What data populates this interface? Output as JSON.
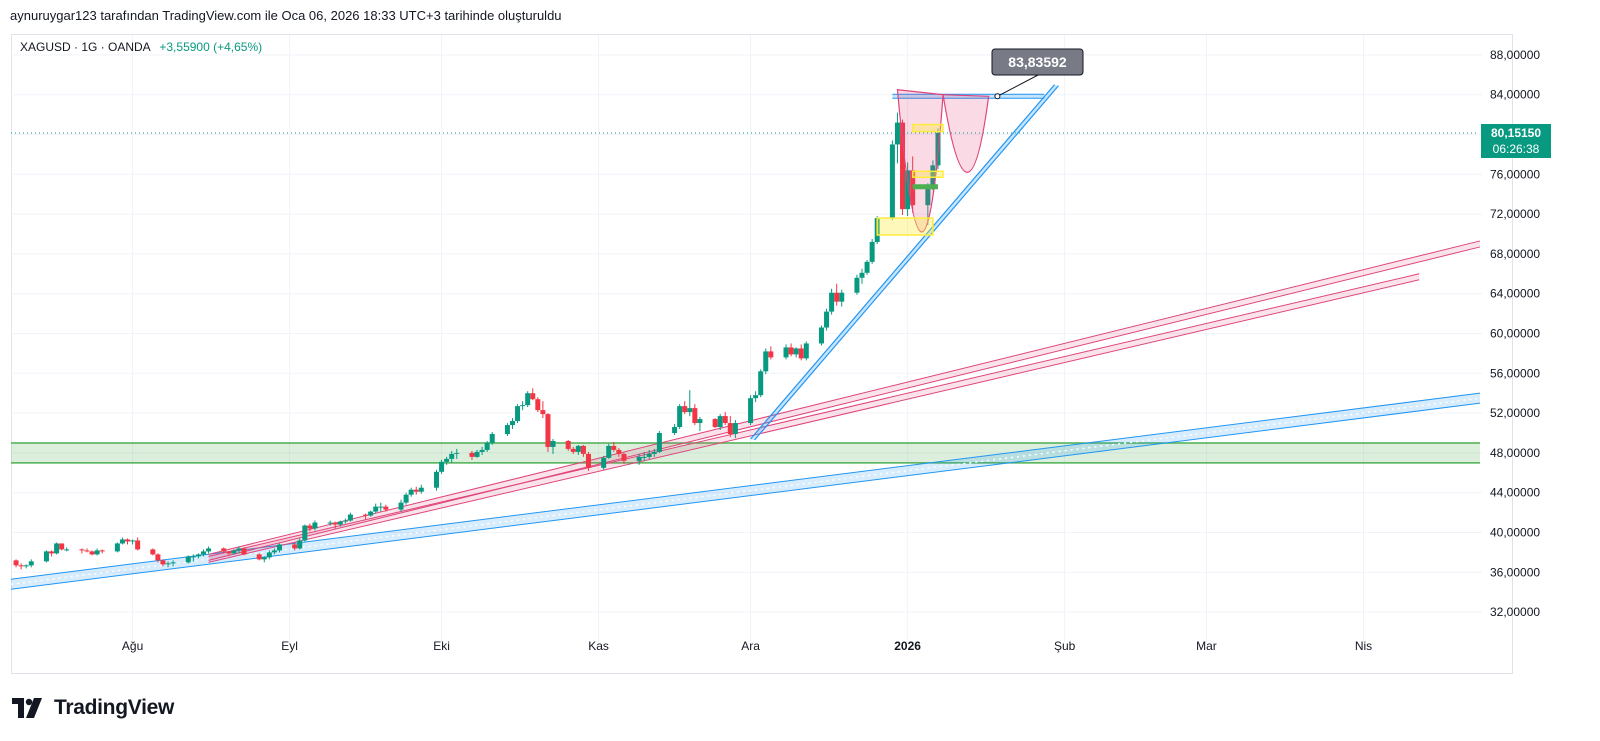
{
  "caption": "aynuruygar123 tarafından TradingView.com ile Oca 06, 2026 18:33 UTC+3 tarihinde oluşturuldu",
  "symbol": {
    "name": "XAGUSD · 1G · OANDA",
    "change": "+3,55900 (+4,65%)"
  },
  "brand": {
    "name": "TradingView"
  },
  "colors": {
    "up": "#089981",
    "down": "#f23645",
    "pink": "#e0457b",
    "blue": "#2196f3",
    "green": "#4caf50",
    "yellow": "#ffeb3b"
  },
  "price_label": {
    "value": "80,15150",
    "countdown": "06:26:38"
  },
  "target_label": "83,83592",
  "chart_data": {
    "type": "candlestick",
    "title": "XAGUSD · 1G · OANDA",
    "ylim": [
      30,
      90
    ],
    "y_ticks": [
      {
        "v": 32,
        "label": "32,00000"
      },
      {
        "v": 36,
        "label": "36,00000"
      },
      {
        "v": 40,
        "label": "40,00000"
      },
      {
        "v": 44,
        "label": "44,00000"
      },
      {
        "v": 48,
        "label": "48,00000"
      },
      {
        "v": 52,
        "label": "52,00000"
      },
      {
        "v": 56,
        "label": "56,00000"
      },
      {
        "v": 60,
        "label": "60,00000"
      },
      {
        "v": 64,
        "label": "64,00000"
      },
      {
        "v": 68,
        "label": "68,00000"
      },
      {
        "v": 72,
        "label": "72,00000"
      },
      {
        "v": 76,
        "label": "76,00000"
      },
      {
        "v": 80,
        "label": "80,00000"
      },
      {
        "v": 84,
        "label": "84,00000"
      },
      {
        "v": 88,
        "label": "88,00000"
      }
    ],
    "x_ticks": [
      {
        "day": 24,
        "label": "Ağu",
        "bold": false
      },
      {
        "day": 55,
        "label": "Eyl",
        "bold": false
      },
      {
        "day": 85,
        "label": "Eki",
        "bold": false
      },
      {
        "day": 116,
        "label": "Kas",
        "bold": false
      },
      {
        "day": 146,
        "label": "Ara",
        "bold": false
      },
      {
        "day": 177,
        "label": "2026",
        "bold": true
      },
      {
        "day": 208,
        "label": "Şub",
        "bold": false
      },
      {
        "day": 236,
        "label": "Mar",
        "bold": false
      },
      {
        "day": 267,
        "label": "Nis",
        "bold": false
      }
    ],
    "x_range_days": [
      0,
      290
    ],
    "start_date": "2025-07-01",
    "last_price": 80.1515,
    "candles": [
      [
        1,
        37.2,
        37.3,
        36.5,
        36.7
      ],
      [
        2,
        36.7,
        36.9,
        36.3,
        36.6
      ],
      [
        3,
        36.6,
        36.8,
        36.4,
        36.7
      ],
      [
        4,
        36.7,
        37.3,
        36.5,
        37.1
      ],
      [
        7,
        37.1,
        38.2,
        37,
        38.1
      ],
      [
        8,
        38.1,
        38.2,
        37.6,
        37.9
      ],
      [
        9,
        37.9,
        39,
        37.8,
        38.9
      ],
      [
        10,
        38.9,
        38.9,
        38.2,
        38.3
      ],
      [
        11,
        38.3,
        38.5,
        38.1,
        38.3
      ],
      [
        14,
        38.3,
        38.4,
        37.9,
        38.2
      ],
      [
        15,
        38.2,
        38.4,
        38,
        38.1
      ],
      [
        16,
        38.1,
        38.2,
        37.7,
        37.8
      ],
      [
        17,
        37.8,
        38.4,
        37.7,
        38.2
      ],
      [
        18,
        38.2,
        38.3,
        37.9,
        38.1
      ],
      [
        21,
        38.1,
        39,
        38,
        38.9
      ],
      [
        22,
        38.9,
        39.5,
        38.8,
        39.3
      ],
      [
        23,
        39.3,
        39.4,
        38.8,
        39.1
      ],
      [
        24,
        39.1,
        39.3,
        38.8,
        39.2
      ],
      [
        25,
        39.2,
        39.5,
        38.2,
        38.3
      ],
      [
        28,
        38.3,
        38.4,
        37.7,
        37.8
      ],
      [
        29,
        37.8,
        37.9,
        37,
        37.2
      ],
      [
        30,
        37.2,
        37.3,
        36.6,
        36.8
      ],
      [
        31,
        36.8,
        37.1,
        36.5,
        36.9
      ],
      [
        32,
        36.9,
        37.2,
        36.6,
        37
      ],
      [
        35,
        37,
        37.7,
        36.9,
        37.6
      ],
      [
        36,
        37.6,
        37.8,
        37.1,
        37.6
      ],
      [
        37,
        37.6,
        37.9,
        37.4,
        37.8
      ],
      [
        38,
        37.8,
        38.3,
        37.6,
        38.1
      ],
      [
        39,
        38.1,
        38.6,
        37.9,
        38.4
      ],
      [
        42,
        38.4,
        38.5,
        37.9,
        38.1
      ],
      [
        43,
        38.1,
        38.1,
        37.7,
        37.9
      ],
      [
        44,
        37.9,
        38.3,
        37.8,
        38.2
      ],
      [
        45,
        38.2,
        38.6,
        37.9,
        38.4
      ],
      [
        46,
        38.4,
        38.5,
        37.7,
        37.8
      ],
      [
        49,
        37.8,
        37.9,
        37.2,
        37.3
      ],
      [
        50,
        37.3,
        37.6,
        37,
        37.5
      ],
      [
        51,
        37.5,
        38.2,
        37.3,
        38
      ],
      [
        52,
        38,
        38.4,
        37.8,
        38.2
      ],
      [
        53,
        38.2,
        38.9,
        38,
        38.8
      ],
      [
        56,
        38.8,
        39,
        38.2,
        38.4
      ],
      [
        57,
        38.4,
        39.4,
        38.3,
        39.2
      ],
      [
        58,
        39.2,
        40.8,
        39.1,
        40.7
      ],
      [
        59,
        40.7,
        40.9,
        40.1,
        40.4
      ],
      [
        60,
        40.4,
        41.2,
        40.2,
        41
      ],
      [
        63,
        41,
        41.2,
        40.7,
        41
      ],
      [
        64,
        41,
        41.1,
        40.4,
        40.8
      ],
      [
        65,
        40.8,
        41.2,
        40.6,
        41.1
      ],
      [
        66,
        41.1,
        41.4,
        40.9,
        41.2
      ],
      [
        67,
        41.2,
        42,
        41.1,
        41.8
      ],
      [
        70,
        41.8,
        41.9,
        41.3,
        41.7
      ],
      [
        71,
        41.7,
        42.2,
        41.6,
        42.1
      ],
      [
        72,
        42.1,
        42.9,
        41.9,
        42.6
      ],
      [
        73,
        42.6,
        43,
        42.1,
        42.6
      ],
      [
        74,
        42.6,
        42.8,
        42.1,
        42.3
      ],
      [
        77,
        42.3,
        43.3,
        42.1,
        43
      ],
      [
        78,
        43,
        44,
        42.8,
        43.8
      ],
      [
        79,
        43.8,
        44.5,
        43.6,
        44.3
      ],
      [
        80,
        44.3,
        44.6,
        43.8,
        44.1
      ],
      [
        81,
        44.1,
        44.8,
        43.9,
        44.5
      ],
      [
        84,
        44.5,
        46.3,
        44.2,
        46.1
      ],
      [
        85,
        46.1,
        47.3,
        45.9,
        47.1
      ],
      [
        86,
        47.1,
        47.6,
        46.8,
        47.4
      ],
      [
        87,
        47.4,
        48.2,
        47,
        47.9
      ],
      [
        88,
        47.9,
        48.4,
        47.4,
        48
      ],
      [
        91,
        48,
        48.2,
        47.3,
        47.6
      ],
      [
        92,
        47.6,
        48.3,
        47.5,
        48.1
      ],
      [
        93,
        48.1,
        48.6,
        47.8,
        48.3
      ],
      [
        94,
        48.3,
        49.2,
        48.1,
        49
      ],
      [
        95,
        49,
        50.1,
        48.8,
        49.9
      ],
      [
        98,
        49.9,
        51,
        49.7,
        50.8
      ],
      [
        99,
        50.8,
        51.5,
        50.4,
        51.2
      ],
      [
        100,
        51.2,
        52.9,
        51,
        52.7
      ],
      [
        101,
        52.7,
        53.2,
        52.3,
        52.8
      ],
      [
        102,
        52.8,
        54.2,
        52.6,
        54
      ],
      [
        103,
        54,
        54.5,
        53.3,
        53.4
      ],
      [
        104,
        53.4,
        53.6,
        52.1,
        52.3
      ],
      [
        105,
        52.3,
        53.2,
        51.5,
        51.9
      ],
      [
        106,
        51.9,
        52,
        48.1,
        48.6
      ],
      [
        107,
        48.6,
        49.4,
        47.9,
        49.2
      ],
      [
        110,
        49.2,
        49.3,
        48.2,
        48.4
      ],
      [
        111,
        48.4,
        48.6,
        47.9,
        48.1
      ],
      [
        112,
        48.1,
        48.8,
        47.8,
        48.7
      ],
      [
        113,
        48.7,
        48.8,
        47.6,
        47.9
      ],
      [
        114,
        47.9,
        48.1,
        46.2,
        46.5
      ],
      [
        117,
        46.5,
        47.7,
        46.3,
        47.5
      ],
      [
        118,
        47.5,
        48.9,
        47.4,
        48.7
      ],
      [
        119,
        48.7,
        49.1,
        48.1,
        48.3
      ],
      [
        120,
        48.3,
        48.5,
        47.6,
        47.9
      ],
      [
        121,
        47.9,
        48,
        46.9,
        47.2
      ],
      [
        124,
        47.2,
        47.9,
        46.8,
        47.6
      ],
      [
        125,
        47.6,
        48.1,
        47.2,
        47.6
      ],
      [
        126,
        47.6,
        48.3,
        47.4,
        47.9
      ],
      [
        127,
        47.9,
        48.4,
        47.6,
        48.1
      ],
      [
        128,
        48.1,
        50.2,
        48,
        50
      ],
      [
        131,
        50,
        50.9,
        49.8,
        50.6
      ],
      [
        132,
        50.6,
        52.9,
        50.4,
        52.7
      ],
      [
        133,
        52.7,
        53.2,
        51.9,
        52.1
      ],
      [
        134,
        52.1,
        54.3,
        51.7,
        52.5
      ],
      [
        135,
        52.5,
        52.9,
        50.8,
        51
      ],
      [
        136,
        51,
        51.6,
        50.2,
        51.4
      ],
      [
        139,
        51.4,
        51.5,
        50.5,
        50.6
      ],
      [
        140,
        50.6,
        51.9,
        50.3,
        51.7
      ],
      [
        141,
        51.7,
        52.1,
        50.8,
        51
      ],
      [
        142,
        51,
        51.7,
        49.6,
        49.9
      ],
      [
        143,
        49.9,
        51.3,
        49.5,
        51
      ],
      [
        146,
        51,
        53.8,
        50.8,
        53.5
      ],
      [
        147,
        53.5,
        54.2,
        53.1,
        53.8
      ],
      [
        148,
        53.8,
        56.4,
        53.6,
        56.2
      ],
      [
        149,
        56.2,
        58.5,
        55.9,
        58.2
      ],
      [
        150,
        58.2,
        58.7,
        57.4,
        57.6
      ],
      [
        153,
        57.6,
        58.9,
        57.4,
        58.6
      ],
      [
        154,
        58.6,
        59,
        57.7,
        57.9
      ],
      [
        155,
        57.9,
        58.6,
        57.6,
        58.5
      ],
      [
        156,
        58.5,
        58.9,
        57.3,
        57.5
      ],
      [
        157,
        57.5,
        59.2,
        57.3,
        59
      ],
      [
        160,
        59,
        60.8,
        58.8,
        60.6
      ],
      [
        161,
        60.6,
        62.5,
        60.3,
        62.2
      ],
      [
        162,
        62.2,
        64.5,
        61.9,
        64.1
      ],
      [
        163,
        64.1,
        65,
        62.8,
        63.2
      ],
      [
        164,
        63.2,
        64.4,
        62.7,
        64.1
      ],
      [
        167,
        64.1,
        65.9,
        63.9,
        65.6
      ],
      [
        168,
        65.6,
        66.5,
        65,
        66.1
      ],
      [
        169,
        66.1,
        67.4,
        65.9,
        67.2
      ],
      [
        170,
        67.2,
        69.5,
        67,
        69.2
      ],
      [
        171,
        69.2,
        71.8,
        69,
        71.6
      ],
      [
        174,
        71.6,
        79.4,
        71.4,
        79
      ],
      [
        175,
        79,
        82.2,
        77.1,
        81.2
      ],
      [
        176,
        81.2,
        81.5,
        71.9,
        72.5
      ],
      [
        177,
        72.5,
        77.2,
        71.8,
        76.4
      ],
      [
        178,
        76.4,
        77.8,
        72.1,
        72.9
      ],
      [
        181,
        72.9,
        75.1,
        70.9,
        74.7
      ],
      [
        182,
        74.7,
        77.4,
        74.4,
        76.9
      ],
      [
        183,
        76.9,
        80.6,
        76.5,
        80.15
      ]
    ]
  },
  "drawings": {
    "green_zone": [
      47,
      49
    ],
    "blue_channel": {
      "d1": 0,
      "p1": 34.8,
      "d2": 290,
      "p2": 53.5
    },
    "pink_lines": [
      {
        "d1": 39,
        "p1": 37.5,
        "d2": 290,
        "p2": 69
      },
      {
        "d1": 39,
        "p1": 37.3,
        "d2": 278,
        "p2": 65.7
      }
    ],
    "blue_support": {
      "d1": 146,
      "p1": 49.4,
      "d2": 206,
      "p2": 85
    },
    "resistance": {
      "d1": 174,
      "p1": 83.84,
      "d2": 204,
      "p2": 83.84
    },
    "yellow_boxes": [
      {
        "d1": 171,
        "d2": 182,
        "p1": 69.9,
        "p2": 71.6
      },
      {
        "d1": 178,
        "d2": 184,
        "p1": 80.3,
        "p2": 81
      },
      {
        "d1": 178,
        "d2": 184,
        "p1": 75.7,
        "p2": 76.3
      }
    ],
    "green_bar": {
      "d1": 178,
      "d2": 183,
      "p1": 74.5,
      "p2": 75
    },
    "cup_lines": [
      {
        "d1": 175,
        "p1": 84.5,
        "d2": 180,
        "p2": 70.2,
        "d3": 184,
        "p3": 84
      },
      {
        "d1": 184,
        "p1": 84,
        "d2": 189,
        "p2": 76.2,
        "d3": 193,
        "p3": 83.84
      }
    ]
  }
}
